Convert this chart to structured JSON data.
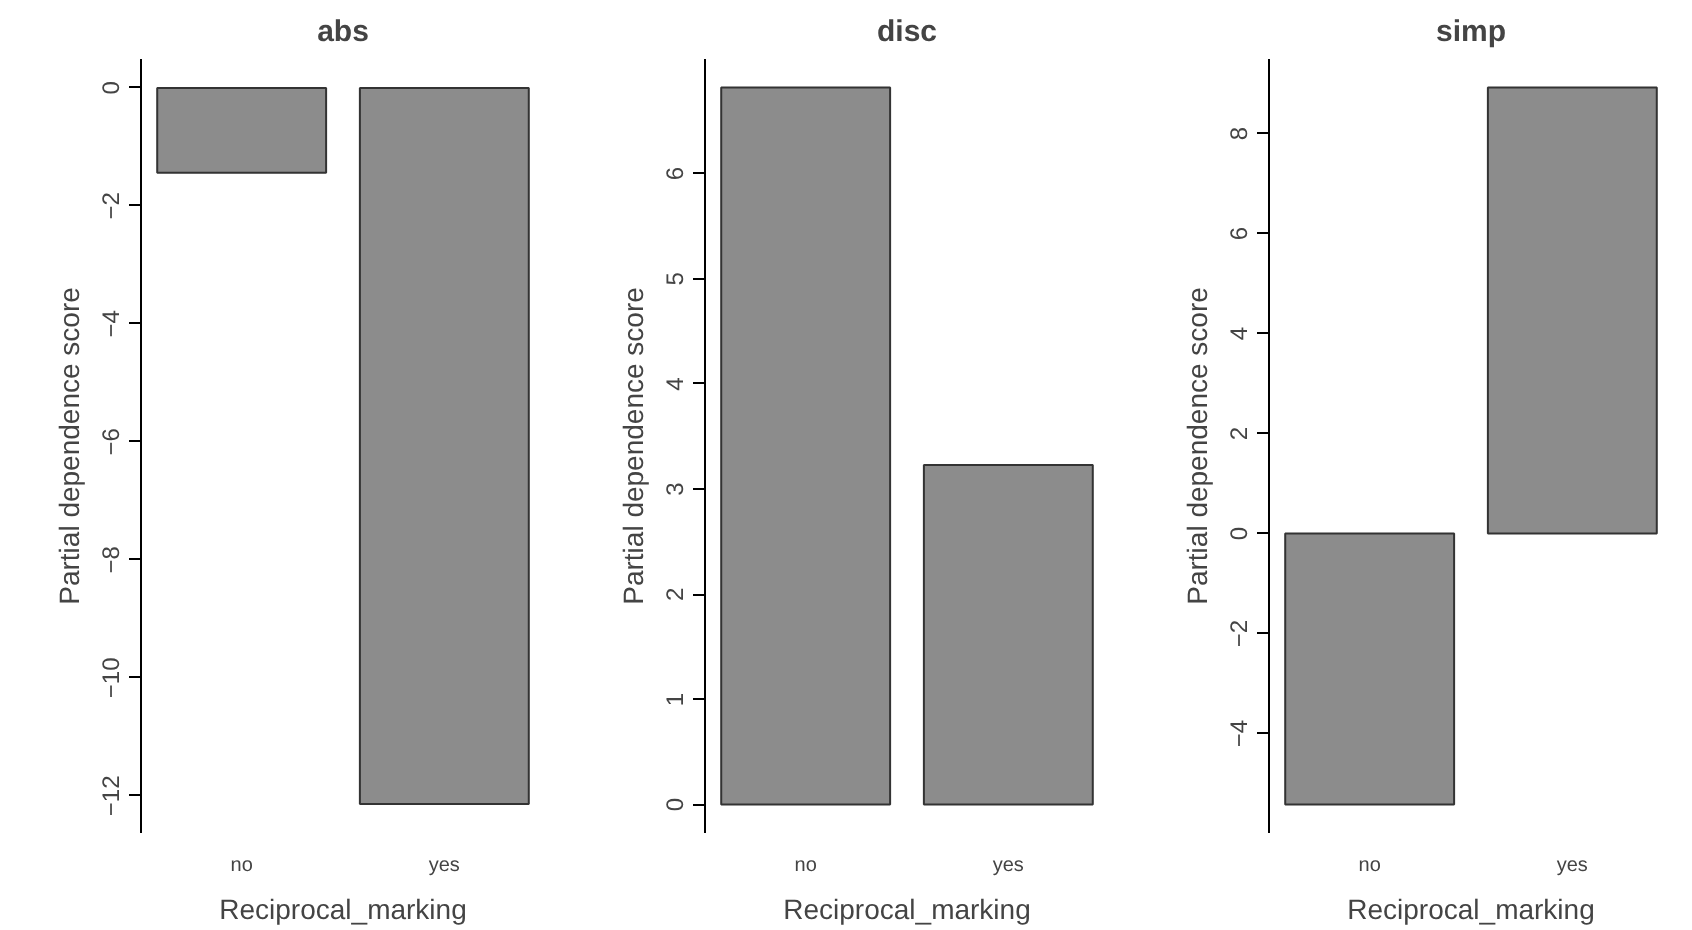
{
  "chart_data": [
    {
      "type": "bar",
      "title": "abs",
      "xlabel": "Reciprocal_marking",
      "ylabel": "Partial dependence score",
      "categories": [
        "no",
        "yes"
      ],
      "values": [
        -1.44,
        -12.14
      ],
      "color": "#8c8c8c",
      "ylim": [
        -12.63,
        0.49
      ],
      "yticks": [
        0,
        -2,
        -4,
        -6,
        -8,
        -10,
        -12
      ],
      "grid": false
    },
    {
      "type": "bar",
      "title": "disc",
      "xlabel": "Reciprocal_marking",
      "ylabel": "Partial dependence score",
      "categories": [
        "no",
        "yes"
      ],
      "values": [
        6.82,
        3.23
      ],
      "color": "#8c8c8c",
      "ylim": [
        -0.27,
        7.09
      ],
      "yticks": [
        0,
        1,
        2,
        3,
        4,
        5,
        6
      ],
      "grid": false
    },
    {
      "type": "bar",
      "title": "simp",
      "xlabel": "Reciprocal_marking",
      "ylabel": "Partial dependence score",
      "categories": [
        "no",
        "yes"
      ],
      "values": [
        -5.42,
        8.92
      ],
      "color": "#8c8c8c",
      "ylim": [
        -5.99,
        9.49
      ],
      "yticks": [
        -4,
        -2,
        0,
        2,
        4,
        6,
        8
      ],
      "grid": false
    }
  ]
}
